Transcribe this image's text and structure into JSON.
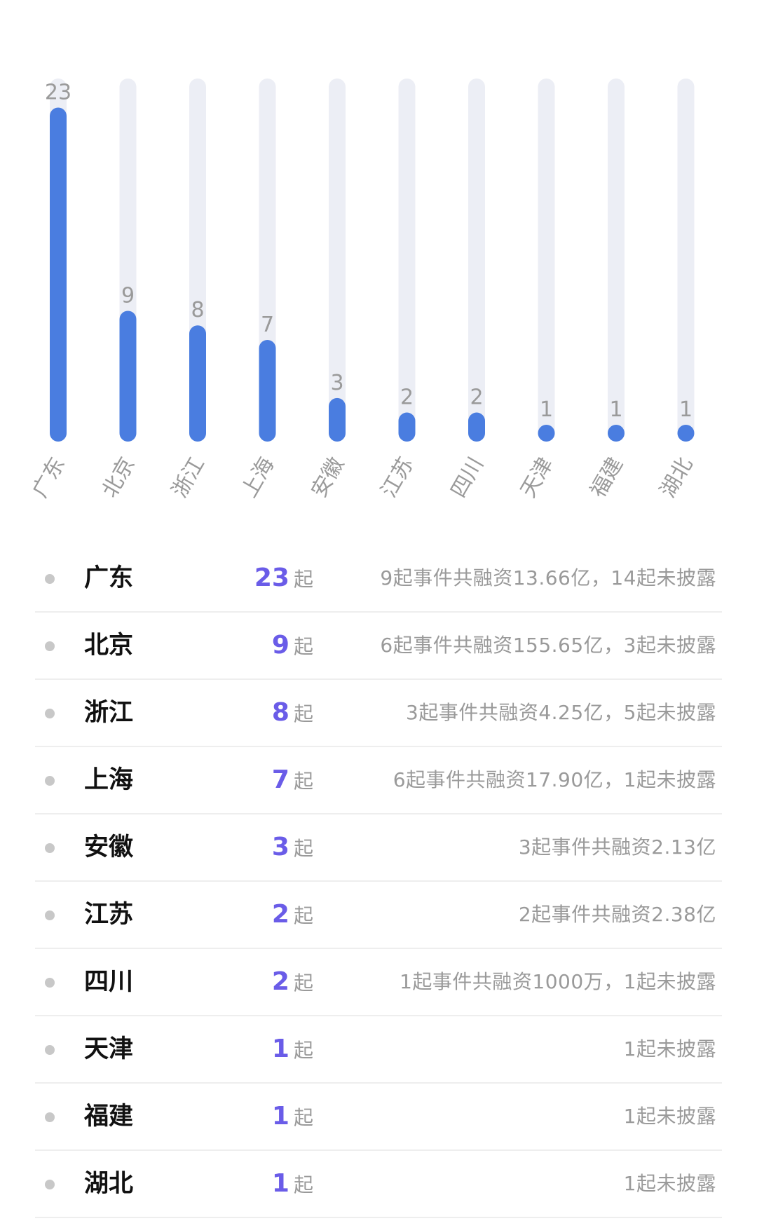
{
  "chart_data": {
    "type": "bar",
    "categories": [
      "广东",
      "北京",
      "浙江",
      "上海",
      "安徽",
      "江苏",
      "四川",
      "天津",
      "福建",
      "湖北"
    ],
    "values": [
      23,
      9,
      8,
      7,
      3,
      2,
      2,
      1,
      1,
      1
    ],
    "ylim": [
      0,
      25
    ],
    "grid": false,
    "colors": {
      "bar": "#4a7de0",
      "track": "#eceef5",
      "label": "#9a9a9a"
    }
  },
  "list": [
    {
      "province": "广东",
      "count": "23",
      "unit": "起",
      "desc": "9起事件共融资13.66亿，14起未披露"
    },
    {
      "province": "北京",
      "count": "9",
      "unit": "起",
      "desc": "6起事件共融资155.65亿，3起未披露"
    },
    {
      "province": "浙江",
      "count": "8",
      "unit": "起",
      "desc": "3起事件共融资4.25亿，5起未披露"
    },
    {
      "province": "上海",
      "count": "7",
      "unit": "起",
      "desc": "6起事件共融资17.90亿，1起未披露"
    },
    {
      "province": "安徽",
      "count": "3",
      "unit": "起",
      "desc": "3起事件共融资2.13亿"
    },
    {
      "province": "江苏",
      "count": "2",
      "unit": "起",
      "desc": "2起事件共融资2.38亿"
    },
    {
      "province": "四川",
      "count": "2",
      "unit": "起",
      "desc": "1起事件共融资1000万，1起未披露"
    },
    {
      "province": "天津",
      "count": "1",
      "unit": "起",
      "desc": "1起未披露"
    },
    {
      "province": "福建",
      "count": "1",
      "unit": "起",
      "desc": "1起未披露"
    },
    {
      "province": "湖北",
      "count": "1",
      "unit": "起",
      "desc": "1起未披露"
    }
  ]
}
